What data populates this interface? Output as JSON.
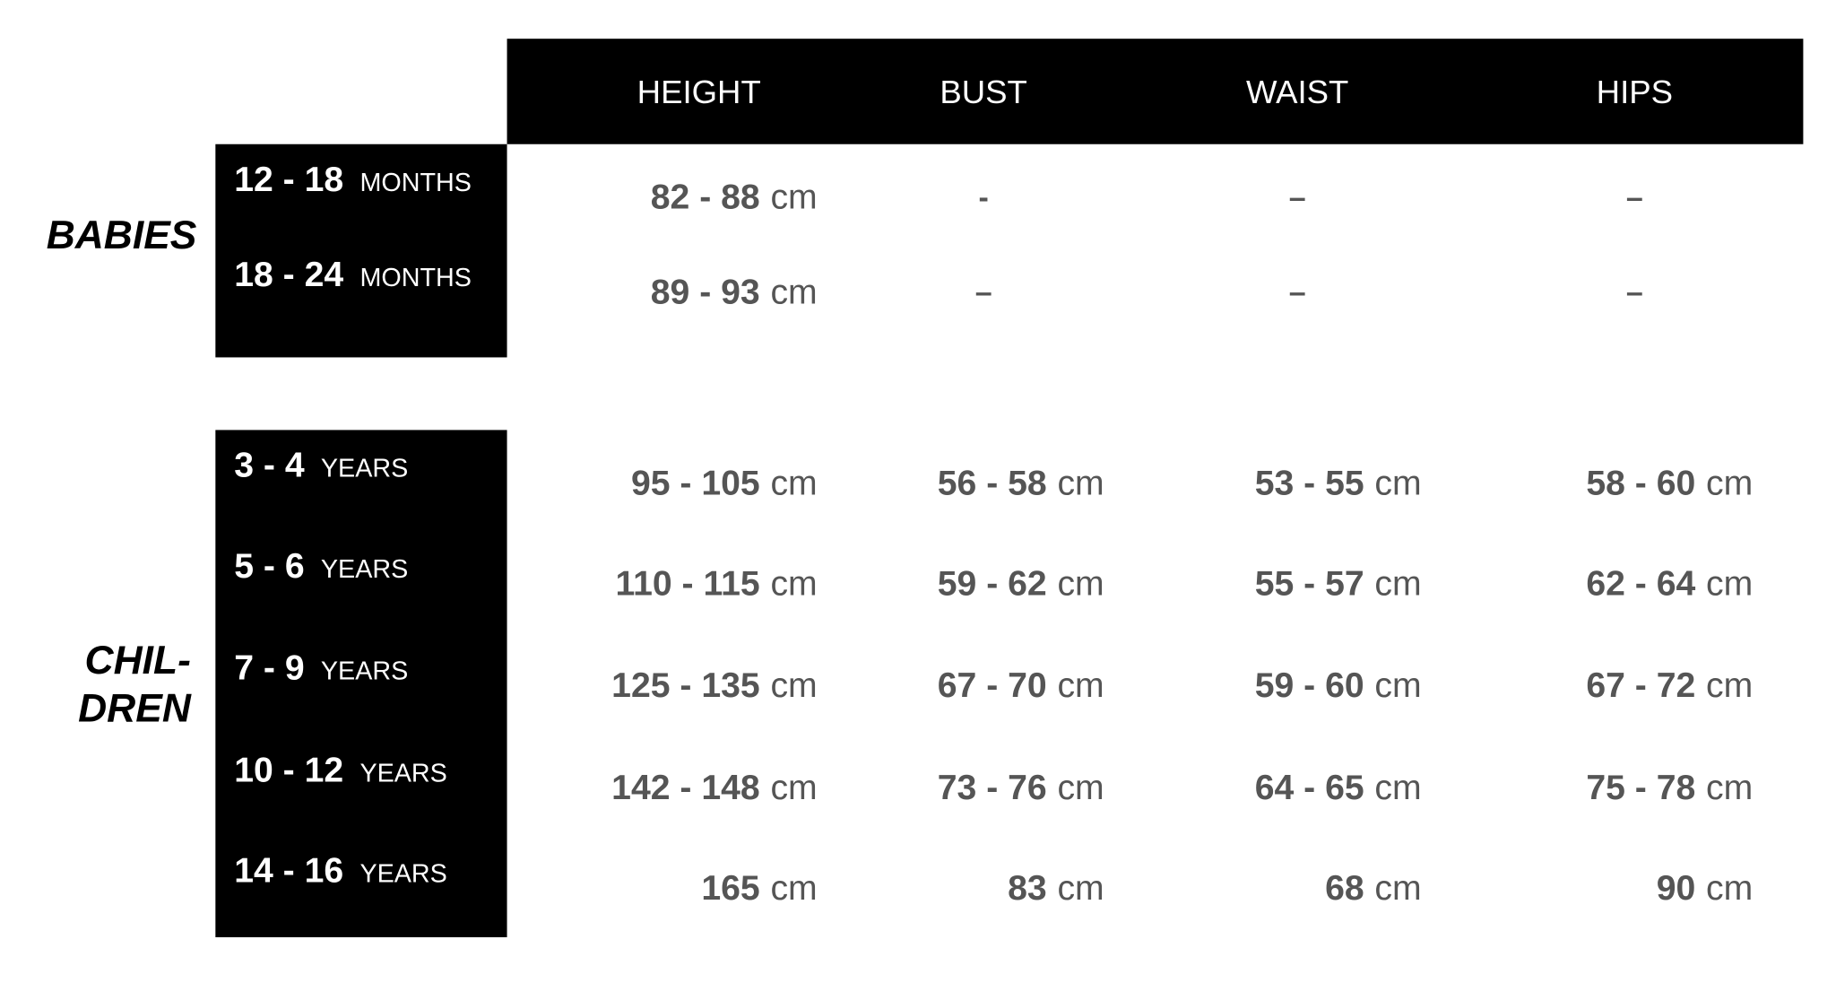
{
  "header": {
    "columns": [
      "HEIGHT",
      "BUST",
      "WAIST",
      "HIPS"
    ]
  },
  "groups": [
    {
      "label": [
        "BABIES"
      ],
      "rows": [
        {
          "size": {
            "range": "12 - 18",
            "unit": "MONTHS"
          },
          "cells": [
            {
              "range": "82 - 88",
              "unit": "cm"
            },
            "-",
            "–",
            "–"
          ]
        },
        {
          "size": {
            "range": "18 - 24",
            "unit": "MONTHS"
          },
          "cells": [
            {
              "range": "89 - 93",
              "unit": "cm"
            },
            "–",
            "–",
            "–"
          ]
        }
      ]
    },
    {
      "label": [
        "CHIL-",
        "DREN"
      ],
      "rows": [
        {
          "size": {
            "range": "3 - 4",
            "unit": "YEARS"
          },
          "cells": [
            {
              "range": "95 - 105",
              "unit": "cm"
            },
            {
              "range": "56 - 58",
              "unit": "cm"
            },
            {
              "range": "53 - 55",
              "unit": "cm"
            },
            {
              "range": "58 - 60",
              "unit": "cm"
            }
          ]
        },
        {
          "size": {
            "range": "5 - 6",
            "unit": "YEARS"
          },
          "cells": [
            {
              "range": "110 - 115",
              "unit": "cm"
            },
            {
              "range": "59 - 62",
              "unit": "cm"
            },
            {
              "range": "55 - 57",
              "unit": "cm"
            },
            {
              "range": "62 - 64",
              "unit": "cm"
            }
          ]
        },
        {
          "size": {
            "range": "7 - 9",
            "unit": "YEARS"
          },
          "cells": [
            {
              "range": "125 - 135",
              "unit": "cm"
            },
            {
              "range": "67 - 70",
              "unit": "cm"
            },
            {
              "range": "59 - 60",
              "unit": "cm"
            },
            {
              "range": "67 - 72",
              "unit": "cm"
            }
          ]
        },
        {
          "size": {
            "range": "10 - 12",
            "unit": "YEARS"
          },
          "cells": [
            {
              "range": "142 - 148",
              "unit": "cm"
            },
            {
              "range": "73 - 76",
              "unit": "cm"
            },
            {
              "range": "64 - 65",
              "unit": "cm"
            },
            {
              "range": "75 - 78",
              "unit": "cm"
            }
          ]
        },
        {
          "size": {
            "range": "14 - 16",
            "unit": "YEARS"
          },
          "cells": [
            {
              "range": "165",
              "unit": "cm"
            },
            {
              "range": "83",
              "unit": "cm"
            },
            {
              "range": "68",
              "unit": "cm"
            },
            {
              "range": "90",
              "unit": "cm"
            }
          ]
        }
      ]
    }
  ]
}
